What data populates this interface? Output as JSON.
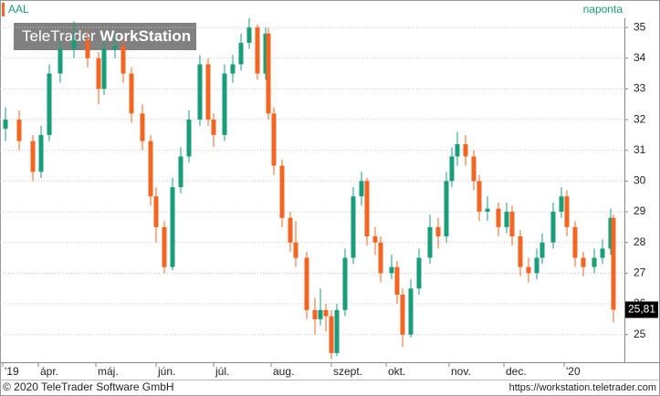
{
  "chart_data": {
    "type": "candlestick",
    "title": "AAL",
    "interval": "naponta",
    "watermark": {
      "normal": "TeleTrader",
      "bold": "WorkStation"
    },
    "footer": {
      "left": "© 2020 TeleTrader Software GmbH",
      "right": "https://workstation.teletrader.com"
    },
    "up_color": "#1a9e7a",
    "down_color": "#f26522",
    "grid": true,
    "x": [
      2,
      7,
      12,
      15,
      18,
      22,
      27,
      32,
      36,
      38,
      42,
      45,
      48,
      52,
      55,
      57,
      60,
      63,
      66,
      69,
      73,
      76,
      78,
      82,
      85,
      88,
      91,
      94,
      97,
      98,
      100,
      103,
      106,
      108,
      112,
      115,
      117,
      119,
      121,
      123,
      126,
      129,
      132,
      134,
      137,
      139,
      143,
      145,
      147,
      150,
      153,
      157,
      160,
      163,
      165,
      167,
      170,
      173,
      175,
      178,
      182,
      185,
      187,
      190,
      193,
      196,
      198,
      202,
      205,
      207,
      210,
      213,
      217,
      220,
      223,
      224
    ],
    "open": [
      31.7,
      32.0,
      31.3,
      30.3,
      31.5,
      33.5,
      34.3,
      34.6,
      34.0,
      33.0,
      34.3,
      34.4,
      33.5,
      32.2,
      31.3,
      29.5,
      28.5,
      27.2,
      29.8,
      30.8,
      32.0,
      33.8,
      32.0,
      31.5,
      33.5,
      33.8,
      34.5,
      35.0,
      33.5,
      34.8,
      32.2,
      30.5,
      28.8,
      28.0,
      27.5,
      25.8,
      25.5,
      25.8,
      25.6,
      24.4,
      25.8,
      27.5,
      29.5,
      30.0,
      28.2,
      28.0,
      27.0,
      27.2,
      26.3,
      25.0,
      26.5,
      27.5,
      28.5,
      28.2,
      30.0,
      30.8,
      31.2,
      30.8,
      30.0,
      29.0,
      29.1,
      28.5,
      29.0,
      28.2,
      27.2,
      27.0,
      27.5,
      28.0,
      29.0,
      29.5,
      28.5,
      27.5,
      27.2,
      27.5,
      27.8,
      28.8
    ],
    "high": [
      32.4,
      32.3,
      31.5,
      31.8,
      33.8,
      34.6,
      35.2,
      34.9,
      34.2,
      34.6,
      34.8,
      34.6,
      33.7,
      32.5,
      31.5,
      29.8,
      28.7,
      30.1,
      31.1,
      32.3,
      34.1,
      34.0,
      32.2,
      33.8,
      34.1,
      34.8,
      35.3,
      35.1,
      35.0,
      35.0,
      32.4,
      30.7,
      29.0,
      28.7,
      27.7,
      26.2,
      26.5,
      26.0,
      25.8,
      26.0,
      27.8,
      29.8,
      30.3,
      30.1,
      28.5,
      28.2,
      27.6,
      27.4,
      26.5,
      26.8,
      27.8,
      28.9,
      28.8,
      30.3,
      31.1,
      31.6,
      31.5,
      31.0,
      30.2,
      29.5,
      29.3,
      29.3,
      29.2,
      28.4,
      27.5,
      27.8,
      28.3,
      29.3,
      29.8,
      29.7,
      28.7,
      27.7,
      27.8,
      28.1,
      29.1,
      28.9
    ],
    "low": [
      31.3,
      31.0,
      30.0,
      30.1,
      31.3,
      33.2,
      34.0,
      33.7,
      32.5,
      32.8,
      34.0,
      33.2,
      31.9,
      31.0,
      29.2,
      28.0,
      27.0,
      27.1,
      29.6,
      30.6,
      31.8,
      31.8,
      31.1,
      31.3,
      33.2,
      33.6,
      34.3,
      33.3,
      33.3,
      32.0,
      30.2,
      28.5,
      27.7,
      27.2,
      25.5,
      25.0,
      25.3,
      25.1,
      24.2,
      24.3,
      25.6,
      27.3,
      29.2,
      27.9,
      27.6,
      26.7,
      26.8,
      26.0,
      24.6,
      24.9,
      26.3,
      27.3,
      27.8,
      28.0,
      29.8,
      30.5,
      30.5,
      29.7,
      28.7,
      28.7,
      28.2,
      28.3,
      27.9,
      26.9,
      26.7,
      26.8,
      27.3,
      27.8,
      28.8,
      28.2,
      27.2,
      26.9,
      27.0,
      27.3,
      27.6,
      25.4
    ],
    "close": [
      32.0,
      31.3,
      30.3,
      31.5,
      33.5,
      34.3,
      34.6,
      34.0,
      33.0,
      34.3,
      34.4,
      33.5,
      32.2,
      31.3,
      29.5,
      28.5,
      27.2,
      29.8,
      30.8,
      32.0,
      33.8,
      32.0,
      31.5,
      33.5,
      33.8,
      34.5,
      35.0,
      33.5,
      34.8,
      32.2,
      30.5,
      28.8,
      28.0,
      27.5,
      25.8,
      25.5,
      25.8,
      25.6,
      24.4,
      25.8,
      27.5,
      29.5,
      30.0,
      28.2,
      28.0,
      27.0,
      27.2,
      26.3,
      25.0,
      26.5,
      27.5,
      28.5,
      28.2,
      30.0,
      30.8,
      31.2,
      30.8,
      30.0,
      29.0,
      29.1,
      28.5,
      29.0,
      28.2,
      27.2,
      27.0,
      27.5,
      28.0,
      29.0,
      29.5,
      28.5,
      27.5,
      27.2,
      27.5,
      27.8,
      28.8,
      25.81
    ],
    "last_price": {
      "value": 25.81,
      "label": "25,81"
    },
    "xlim": [
      0,
      228
    ],
    "xticks": [
      {
        "value": 1,
        "label": "'19"
      },
      {
        "value": 14,
        "label": "ápr."
      },
      {
        "value": 35,
        "label": "máj."
      },
      {
        "value": 57,
        "label": "jún."
      },
      {
        "value": 78,
        "label": "júl."
      },
      {
        "value": 99,
        "label": "aug."
      },
      {
        "value": 121,
        "label": "szept."
      },
      {
        "value": 141,
        "label": "okt."
      },
      {
        "value": 164,
        "label": "nov."
      },
      {
        "value": 184,
        "label": "dec."
      },
      {
        "value": 206,
        "label": "'20"
      }
    ],
    "ylim": [
      24.1,
      35.3
    ],
    "yticks": [
      25,
      26,
      27,
      28,
      29,
      30,
      31,
      32,
      33,
      34,
      35
    ]
  }
}
